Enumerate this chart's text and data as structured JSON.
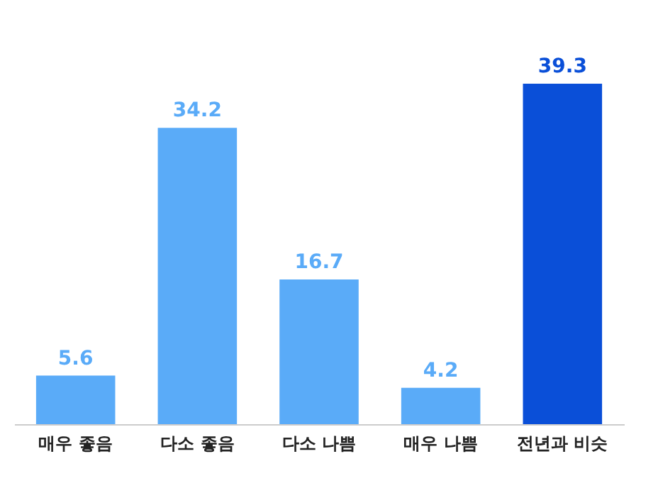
{
  "chart_data": {
    "type": "bar",
    "categories": [
      "매우 좋음",
      "다소 좋음",
      "다소 나쁨",
      "매우 나쁨",
      "전년과 비슷"
    ],
    "values": [
      5.6,
      34.2,
      16.7,
      4.2,
      39.3
    ],
    "colors": [
      "#5aabf8",
      "#5aabf8",
      "#5aabf8",
      "#5aabf8",
      "#0a4fd8"
    ],
    "data_labels": true
  }
}
